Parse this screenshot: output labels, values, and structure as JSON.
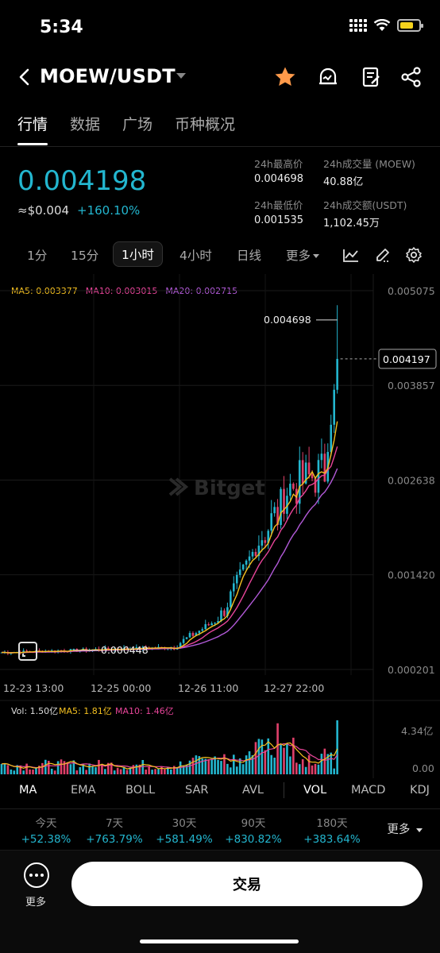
{
  "status_bar": {
    "time": "5:34"
  },
  "header": {
    "pair": "MOEW/USDT",
    "icons": [
      "back-icon",
      "star-icon",
      "alert-icon",
      "note-icon",
      "share-icon"
    ]
  },
  "tabs": [
    {
      "label": "行情",
      "active": true
    },
    {
      "label": "数据",
      "active": false
    },
    {
      "label": "广场",
      "active": false
    },
    {
      "label": "币种概况",
      "active": false
    }
  ],
  "ticker": {
    "price": "0.004198",
    "fiat": "≈$0.004",
    "change": "+160.10%",
    "high_label": "24h最高价",
    "high_value": "0.004698",
    "vol_label": "24h成交量 (MOEW)",
    "vol_value": "40.88亿",
    "low_label": "24h最低价",
    "low_value": "0.001535",
    "amount_label": "24h成交额(USDT)",
    "amount_value": "1,102.45万"
  },
  "intervals": [
    {
      "label": "1分"
    },
    {
      "label": "15分"
    },
    {
      "label": "1小时",
      "active": true
    },
    {
      "label": "4小时"
    },
    {
      "label": "日线"
    },
    {
      "label": "更多"
    }
  ],
  "ma_legend": {
    "ma5": "MA5: 0.003377",
    "ma10": "MA10: 0.003015",
    "ma20": "MA20: 0.002715",
    "ma5_color": "#f4c020",
    "ma10_color": "#e8459a",
    "ma20_color": "#b25ad8"
  },
  "chart_data": {
    "type": "candlestick",
    "y_ticks": [
      "0.005075",
      "0.003857",
      "0.002638",
      "0.001420",
      "0.000201"
    ],
    "ylim": [
      0.000201,
      0.005075
    ],
    "x_ticks": [
      "12-23 13:00",
      "12-25 00:00",
      "12-26 11:00",
      "12-27 22:00"
    ],
    "current_price_label": "0.004197",
    "high_annotation": "0.004698",
    "low_annotation": "0.000448",
    "watermark": "Bitget",
    "up_color": "#23b6cf",
    "down_color": "#e0406a",
    "volume": {
      "legend_vol": "Vol: 1.50亿",
      "legend_ma5": "MA5: 1.81亿",
      "legend_ma10": "MA10: 1.46亿",
      "y_ticks": [
        "4.34亿",
        "0.00"
      ]
    }
  },
  "indicators": [
    "MA",
    "EMA",
    "BOLL",
    "SAR",
    "AVL",
    "VOL",
    "MACD",
    "KDJ"
  ],
  "performance": [
    {
      "label": "今天",
      "value": "+52.38%"
    },
    {
      "label": "7天",
      "value": "+763.79%"
    },
    {
      "label": "30天",
      "value": "+581.49%"
    },
    {
      "label": "90天",
      "value": "+830.82%"
    },
    {
      "label": "180天",
      "value": "+383.64%"
    }
  ],
  "performance_more": "更多",
  "bottom": {
    "more_label": "更多",
    "trade_label": "交易"
  }
}
